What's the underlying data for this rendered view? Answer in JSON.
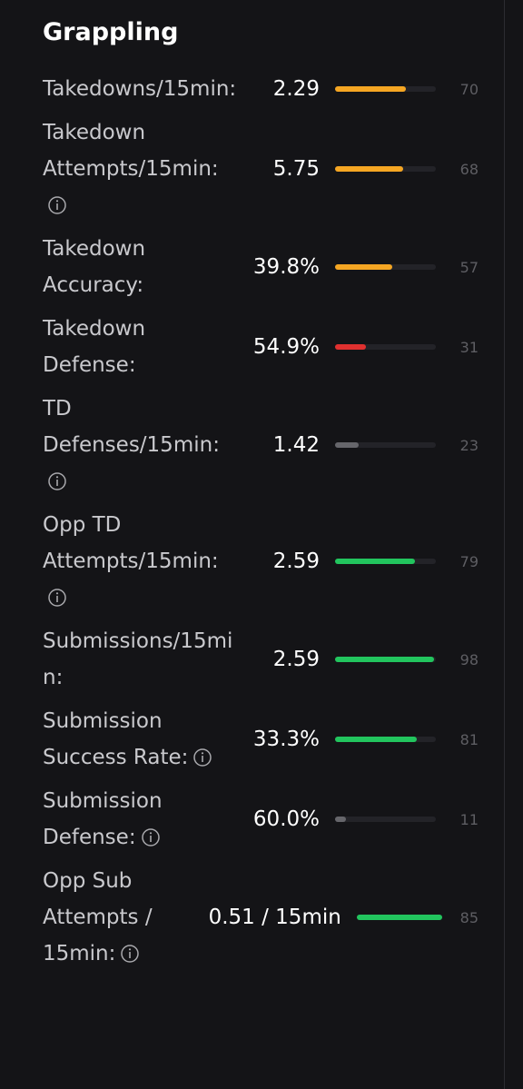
{
  "header": {
    "title": "Grappling"
  },
  "rows": [
    {
      "label": "Takedowns/15min:",
      "value": "2.29",
      "percentile": 70,
      "color": "#f5a623",
      "info": false
    },
    {
      "label": "Takedown Attempts/15min:",
      "value": "5.75",
      "percentile": 68,
      "color": "#f5a623",
      "info": true
    },
    {
      "label": "Takedown Accuracy:",
      "value": "39.8%",
      "percentile": 57,
      "color": "#f5a623",
      "info": false
    },
    {
      "label": "Takedown Defense:",
      "value": "54.9%",
      "percentile": 31,
      "color": "#e0302f",
      "info": false
    },
    {
      "label": "TD Defenses/15min:",
      "value": "1.42",
      "percentile": 23,
      "color": "#66666b",
      "info": true
    },
    {
      "label": "Opp TD Attempts/15min:",
      "value": "2.59",
      "percentile": 79,
      "color": "#22c55e",
      "info": true
    },
    {
      "label": "Submissions/15min:",
      "value": "2.59",
      "percentile": 98,
      "color": "#22c55e",
      "info": false
    },
    {
      "label": "Submission Success Rate:",
      "value": "33.3%",
      "percentile": 81,
      "color": "#22c55e",
      "info": true
    },
    {
      "label": "Submission Defense:",
      "value": "60.0%",
      "percentile": 11,
      "color": "#66666b",
      "info": true
    },
    {
      "label": "Opp Sub Attempts / 15min:",
      "value": "0.51 / 15min",
      "percentile": 85,
      "color": "#22c55e",
      "info": true
    }
  ]
}
